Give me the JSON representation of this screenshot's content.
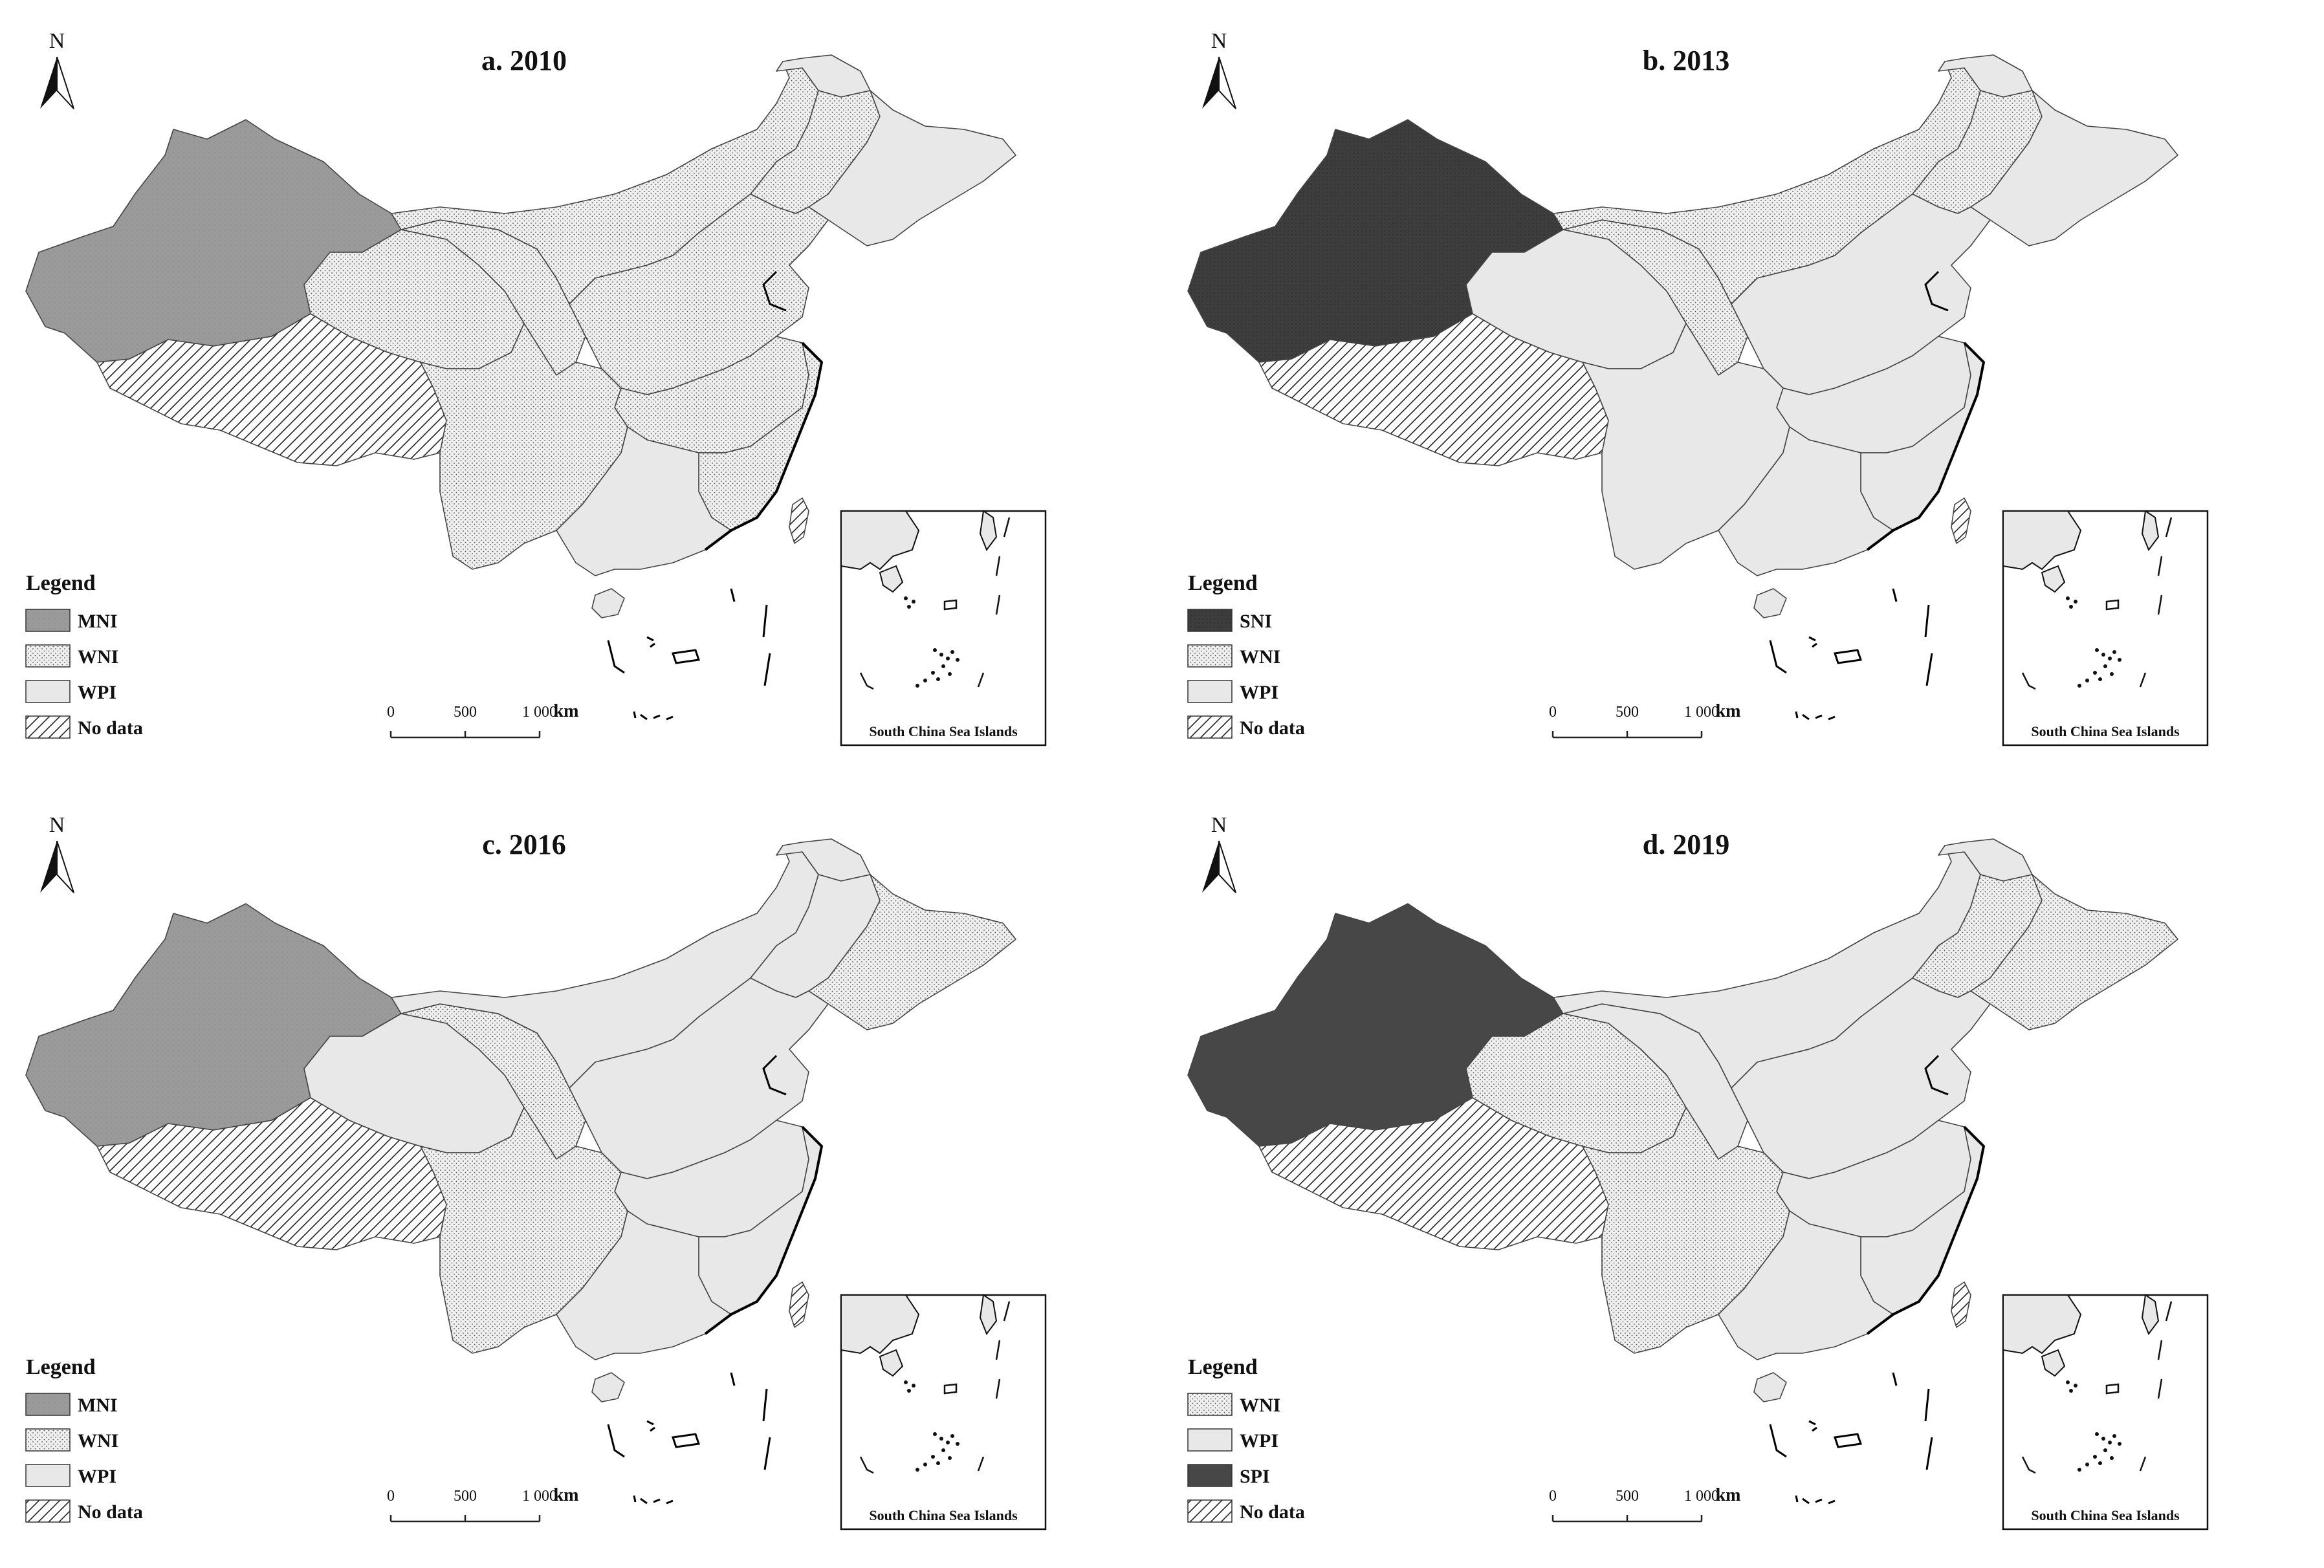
{
  "panels": [
    {
      "title": "a. 2010",
      "xinjiang": "MNI",
      "legend": [
        {
          "label": "MNI",
          "pattern": "mni"
        },
        {
          "label": "WNI",
          "pattern": "wni"
        },
        {
          "label": "WPI",
          "pattern": "wpi"
        },
        {
          "label": "No  data",
          "pattern": "nodata"
        }
      ],
      "regions": {
        "northwest": "wni",
        "qinghai": "wni",
        "innermongolia": "wni",
        "northeast_west": "wni",
        "northeast_east": "wpi",
        "northeast_top": "wpi",
        "north_china": "wni",
        "central": "wni",
        "southwest": "wni",
        "southeast": "wni",
        "south": "wpi",
        "hainan": "wpi",
        "taiwan": "nodata"
      }
    },
    {
      "title": "b. 2013",
      "xinjiang": "SNI",
      "legend": [
        {
          "label": "SNI",
          "pattern": "sni"
        },
        {
          "label": "WNI",
          "pattern": "wni"
        },
        {
          "label": "WPI",
          "pattern": "wpi"
        },
        {
          "label": "No data",
          "pattern": "nodata"
        }
      ],
      "regions": {
        "northwest": "wni",
        "qinghai": "wpi",
        "innermongolia": "wni",
        "northeast_west": "wni",
        "northeast_east": "wpi",
        "northeast_top": "wpi",
        "north_china": "wpi",
        "central": "wpi",
        "southwest": "wpi",
        "southeast": "wpi",
        "south": "wpi",
        "hainan": "wpi",
        "taiwan": "nodata"
      }
    },
    {
      "title": "c. 2016",
      "xinjiang": "MNI",
      "legend": [
        {
          "label": "MNI",
          "pattern": "mni"
        },
        {
          "label": "WNI",
          "pattern": "wni"
        },
        {
          "label": "WPI",
          "pattern": "wpi"
        },
        {
          "label": "No data",
          "pattern": "nodata"
        }
      ],
      "regions": {
        "northwest": "wni",
        "qinghai": "wpi",
        "innermongolia": "wpi",
        "northeast_west": "wpi",
        "northeast_east": "wni",
        "northeast_top": "wpi",
        "north_china": "wpi",
        "central": "wpi",
        "southwest": "wni",
        "southeast": "wpi",
        "south": "wpi",
        "hainan": "wpi",
        "taiwan": "nodata"
      }
    },
    {
      "title": "d. 2019",
      "xinjiang": "SPI",
      "legend": [
        {
          "label": "WNI",
          "pattern": "wni"
        },
        {
          "label": "WPI",
          "pattern": "wpi"
        },
        {
          "label": "SPI",
          "pattern": "spi"
        },
        {
          "label": "No data",
          "pattern": "nodata"
        }
      ],
      "regions": {
        "northwest": "wpi",
        "qinghai": "wni",
        "innermongolia": "wpi",
        "northeast_west": "wni",
        "northeast_east": "wni",
        "northeast_top": "wpi",
        "north_china": "wpi",
        "central": "wpi",
        "southwest": "wni",
        "southeast": "wpi",
        "south": "wpi",
        "hainan": "wpi",
        "taiwan": "nodata"
      }
    }
  ],
  "legend_title": "Legend",
  "north_label": "N",
  "scale": {
    "ticks": [
      "0",
      "500",
      "1 000"
    ],
    "unit": "km"
  },
  "inset_label": "South China Sea Islands",
  "colors": {
    "mni": "#999999",
    "sni": "#3a3a3a",
    "spi": "#474747",
    "wni": "#eeeeee",
    "wpi": "#e8e8e8",
    "outline": "#111111",
    "border": "#444444"
  }
}
